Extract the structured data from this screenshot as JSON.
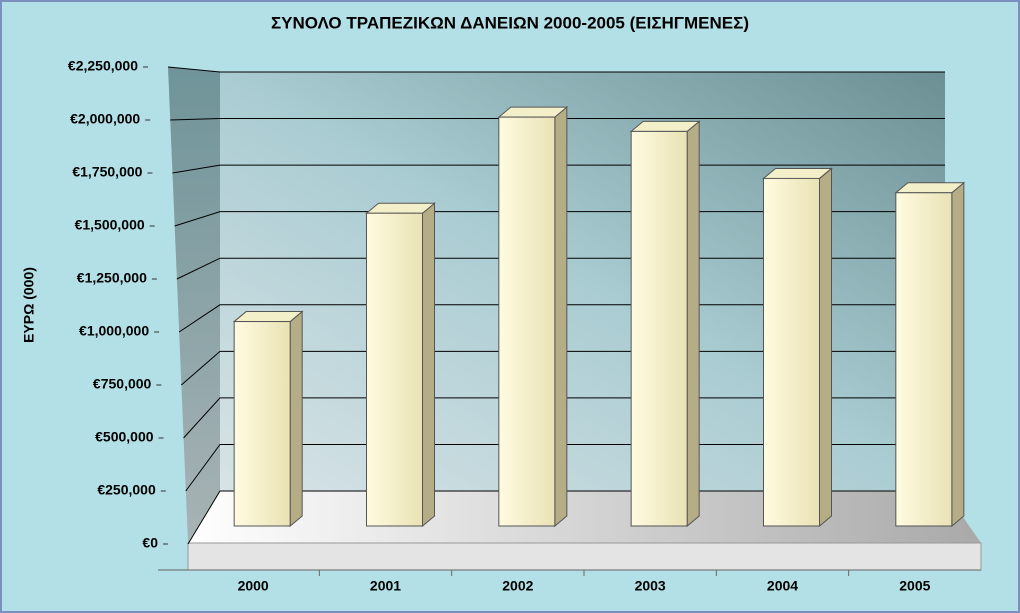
{
  "chart_data": {
    "type": "bar",
    "title": "ΣΥΝΟΛΟ ΤΡΑΠΕΖΙΚΩΝ ΔΑΝΕΙΩΝ 2000-2005 (ΕΙΣΗΓΜΕΝΕΣ)",
    "y_label": "ΕΥΡΩ (000)",
    "categories": [
      "2000",
      "2001",
      "2002",
      "2003",
      "2004",
      "2005"
    ],
    "values": [
      1000000,
      1530000,
      2000000,
      1930000,
      1700000,
      1630000
    ],
    "color": "#f3efc8",
    "ylim": [
      0,
      2250000
    ],
    "yticks": [
      {
        "value": 0,
        "label": "€0"
      },
      {
        "value": 250000,
        "label": "€250,000"
      },
      {
        "value": 500000,
        "label": "€500,000"
      },
      {
        "value": 750000,
        "label": "€750,000"
      },
      {
        "value": 1000000,
        "label": "€1,000,000"
      },
      {
        "value": 1250000,
        "label": "€1,250,000"
      },
      {
        "value": 1500000,
        "label": "€1,500,000"
      },
      {
        "value": 1750000,
        "label": "€1,750,000"
      },
      {
        "value": 2000000,
        "label": "€2,000,000"
      },
      {
        "value": 2250000,
        "label": "€2,250,000"
      }
    ],
    "grid": true
  }
}
